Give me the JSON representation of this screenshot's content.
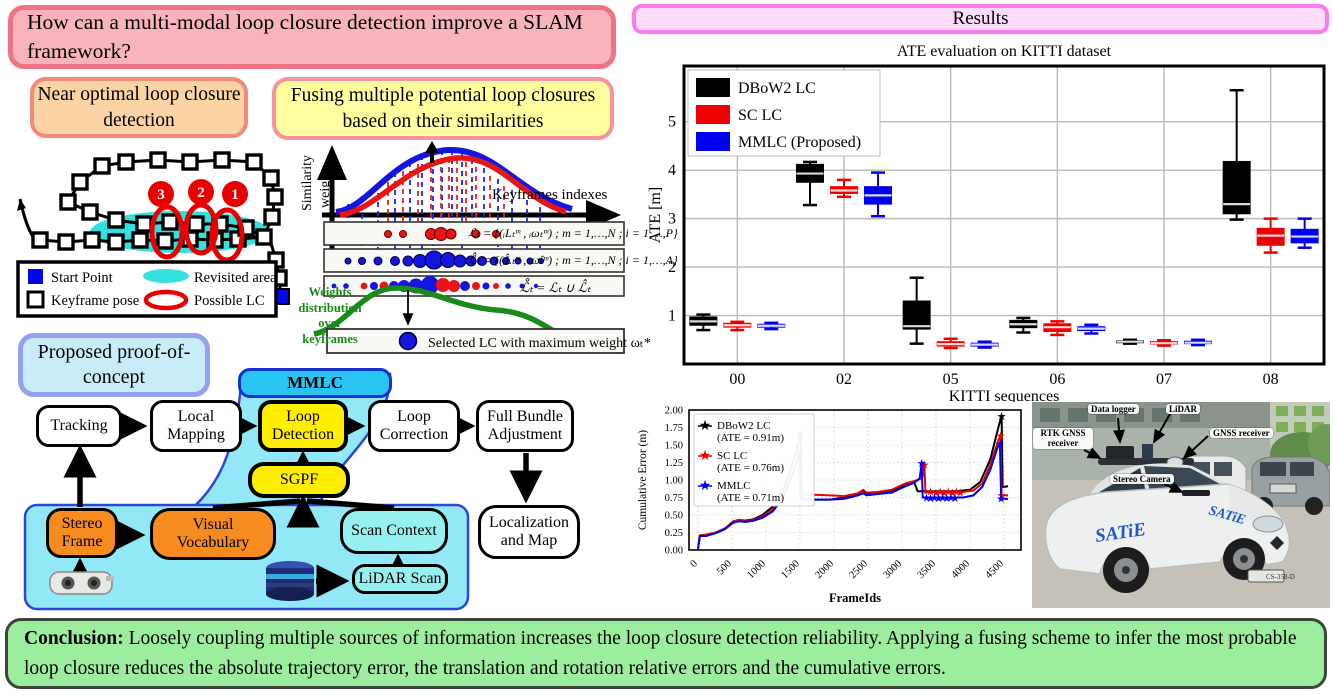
{
  "header": {
    "question": "How can a multi-modal loop closure detection improve a SLAM framework?"
  },
  "method_boxes": {
    "near_optimal": "Near optimal loop closure detection",
    "fusing": "Fusing multiple potential loop closures based on their similarities"
  },
  "trajectory": {
    "legend": {
      "start_point": "Start Point",
      "keyframe_pose": "Keyframe pose",
      "revisited_area": "Revisited area",
      "possible_lc": "Possible LC"
    },
    "lc_labels": {
      "first": "1",
      "second": "2",
      "third": "3"
    }
  },
  "similarity_fig": {
    "ylabel_line1": "Similarity",
    "ylabel_line2": "weight",
    "xlabel": "Keyframes indexes",
    "formula_row1": "ℒₜ = {(ᵢLₜᵐ , ᵢωₜᵐ) ;  m = 1,…,N ;  i = 1,…,P}",
    "formula_row2": "ℒ̂ₜ = {(ᵢL̂ₜᵐ , ᵢω̂ₜᵐ) ;  m = 1,…,N ;  i = 1,…,A}",
    "formula_row3": "ℒ̊ₜ = ℒₜ ∪ ℒ̂ₜ",
    "weights_label": "Weights distribution over keyframes",
    "selected_label": "Selected LC with maximum weight ωₜ*"
  },
  "proposed": {
    "title": "Proposed proof-of-concept",
    "nodes": {
      "tracking": "Tracking",
      "local_mapping": "Local Mapping",
      "mmlc": "MMLC",
      "loop_detection": "Loop Detection",
      "loop_correction": "Loop Correction",
      "full_bundle_adjustment": "Full Bundle Adjustment",
      "sgpf": "SGPF",
      "stereo_frame": "Stereo Frame",
      "visual_vocabulary": "Visual Vocabulary",
      "scan_context": "Scan Context",
      "lidar_scan": "LiDAR Scan",
      "localization_and_map": "Localization and Map"
    }
  },
  "results": {
    "title": "Results"
  },
  "chart_data": [
    {
      "type": "boxplot",
      "title": "ATE evaluation on KITTI dataset",
      "xlabel": "KITTI sequences",
      "ylabel": "ATE [m]",
      "categories": [
        "00",
        "02",
        "05",
        "06",
        "07",
        "08"
      ],
      "ylim": [
        0,
        6.15
      ],
      "yticks": [
        1,
        2,
        3,
        4,
        5
      ],
      "grid": true,
      "legend_position": "upper-left",
      "series": [
        {
          "name": "DBoW2 LC",
          "color": "#000000",
          "boxes": [
            [
              0.7,
              0.8,
              0.88,
              0.97,
              1.02
            ],
            [
              3.28,
              3.75,
              3.93,
              4.12,
              4.17
            ],
            [
              0.42,
              0.72,
              0.78,
              1.3,
              1.78
            ],
            [
              0.65,
              0.75,
              0.82,
              0.9,
              0.95
            ],
            [
              0.42,
              0.44,
              0.46,
              0.48,
              0.5
            ],
            [
              2.98,
              3.1,
              3.3,
              4.18,
              5.65
            ]
          ]
        },
        {
          "name": "SC LC",
          "color": "#ee0000",
          "boxes": [
            [
              0.7,
              0.76,
              0.8,
              0.84,
              0.87
            ],
            [
              3.45,
              3.52,
              3.58,
              3.66,
              3.8
            ],
            [
              0.33,
              0.37,
              0.41,
              0.46,
              0.52
            ],
            [
              0.6,
              0.67,
              0.76,
              0.83,
              0.88
            ],
            [
              0.38,
              0.41,
              0.43,
              0.46,
              0.49
            ],
            [
              2.3,
              2.45,
              2.65,
              2.8,
              3.0
            ]
          ]
        },
        {
          "name": "MMLC (Proposed)",
          "color": "#0000ee",
          "boxes": [
            [
              0.72,
              0.76,
              0.79,
              0.82,
              0.85
            ],
            [
              3.05,
              3.3,
              3.48,
              3.66,
              3.95
            ],
            [
              0.34,
              0.37,
              0.4,
              0.43,
              0.46
            ],
            [
              0.63,
              0.69,
              0.73,
              0.77,
              0.81
            ],
            [
              0.39,
              0.42,
              0.44,
              0.47,
              0.5
            ],
            [
              2.4,
              2.5,
              2.63,
              2.78,
              3.0
            ]
          ]
        }
      ]
    },
    {
      "type": "line",
      "xlabel": "FrameIds",
      "ylabel": "Cumulative Error (m)",
      "xlim": [
        -130,
        4750
      ],
      "ylim": [
        0,
        2.0
      ],
      "xticks": [
        0,
        500,
        1000,
        1500,
        2000,
        2500,
        3000,
        3500,
        4000,
        4500
      ],
      "ytick_labels": [
        "0.00",
        "0.25",
        "0.50",
        "0.75",
        "1.00",
        "1.25",
        "1.50",
        "1.75",
        "2.00"
      ],
      "yticks": [
        0,
        0.25,
        0.5,
        0.75,
        1.0,
        1.25,
        1.5,
        1.75,
        2.0
      ],
      "grid": true,
      "series": [
        {
          "name": "DBoW2 LC",
          "ate_label": "(ATE = 0.91m)",
          "color": "#000000",
          "points": [
            [
              0,
              0
            ],
            [
              30,
              0.2
            ],
            [
              120,
              0.21
            ],
            [
              260,
              0.24
            ],
            [
              400,
              0.3
            ],
            [
              520,
              0.4
            ],
            [
              600,
              0.43
            ],
            [
              700,
              0.42
            ],
            [
              820,
              0.44
            ],
            [
              950,
              0.5
            ],
            [
              1100,
              0.62
            ],
            [
              1250,
              0.85
            ],
            [
              1400,
              1.25
            ],
            [
              1510,
              1.65
            ],
            [
              1525,
              0.73
            ],
            [
              1700,
              0.72
            ],
            [
              1950,
              0.72
            ],
            [
              2150,
              0.75
            ],
            [
              2350,
              0.8
            ],
            [
              2430,
              0.85
            ],
            [
              2480,
              0.8
            ],
            [
              2650,
              0.81
            ],
            [
              2850,
              0.84
            ],
            [
              3050,
              0.93
            ],
            [
              3180,
              0.97
            ],
            [
              3230,
              0.84
            ],
            [
              3500,
              0.84
            ],
            [
              3800,
              0.84
            ],
            [
              4000,
              0.86
            ],
            [
              4150,
              0.97
            ],
            [
              4300,
              1.3
            ],
            [
              4430,
              1.8
            ],
            [
              4465,
              1.91
            ],
            [
              4480,
              0.9
            ],
            [
              4560,
              0.91
            ]
          ],
          "stars": [
            [
              1510,
              1.65
            ],
            [
              4465,
              1.91
            ]
          ]
        },
        {
          "name": "SC LC",
          "ate_label": "(ATE = 0.76m)",
          "color": "#ee0000",
          "points": [
            [
              0,
              0
            ],
            [
              30,
              0.21
            ],
            [
              120,
              0.22
            ],
            [
              260,
              0.25
            ],
            [
              400,
              0.31
            ],
            [
              520,
              0.41
            ],
            [
              600,
              0.43
            ],
            [
              700,
              0.41
            ],
            [
              820,
              0.43
            ],
            [
              950,
              0.48
            ],
            [
              1100,
              0.58
            ],
            [
              1250,
              0.78
            ],
            [
              1400,
              1.12
            ],
            [
              1490,
              1.35
            ],
            [
              1505,
              0.79
            ],
            [
              1700,
              0.79
            ],
            [
              1950,
              0.78
            ],
            [
              2150,
              0.77
            ],
            [
              2350,
              0.81
            ],
            [
              2430,
              0.86
            ],
            [
              2480,
              0.82
            ],
            [
              2650,
              0.83
            ],
            [
              2850,
              0.86
            ],
            [
              3050,
              0.95
            ],
            [
              3200,
              0.99
            ],
            [
              3300,
              1.03
            ],
            [
              3330,
              1.22
            ],
            [
              3345,
              0.82
            ],
            [
              3600,
              0.83
            ],
            [
              3900,
              0.83
            ],
            [
              4050,
              0.85
            ],
            [
              4180,
              0.95
            ],
            [
              4300,
              1.22
            ],
            [
              4420,
              1.58
            ],
            [
              4450,
              1.63
            ],
            [
              4465,
              0.78
            ],
            [
              4560,
              0.78
            ]
          ],
          "stars": [
            [
              1490,
              1.35
            ],
            [
              3330,
              1.22
            ],
            [
              3420,
              0.83
            ],
            [
              3500,
              0.82
            ],
            [
              3560,
              0.83
            ],
            [
              3620,
              0.82
            ],
            [
              3680,
              0.83
            ],
            [
              3740,
              0.82
            ],
            [
              3800,
              0.83
            ],
            [
              3860,
              0.82
            ],
            [
              4450,
              1.63
            ],
            [
              4465,
              0.78
            ]
          ]
        },
        {
          "name": "MMLC",
          "ate_label": "(ATE = 0.71m)",
          "color": "#0000ee",
          "points": [
            [
              0,
              0
            ],
            [
              30,
              0.2
            ],
            [
              120,
              0.2
            ],
            [
              260,
              0.24
            ],
            [
              400,
              0.3
            ],
            [
              520,
              0.39
            ],
            [
              600,
              0.41
            ],
            [
              700,
              0.4
            ],
            [
              820,
              0.42
            ],
            [
              950,
              0.46
            ],
            [
              1100,
              0.55
            ],
            [
              1250,
              0.74
            ],
            [
              1400,
              1.08
            ],
            [
              1500,
              1.4
            ],
            [
              1515,
              0.72
            ],
            [
              1700,
              0.72
            ],
            [
              1950,
              0.72
            ],
            [
              2150,
              0.73
            ],
            [
              2350,
              0.78
            ],
            [
              2430,
              0.81
            ],
            [
              2480,
              0.78
            ],
            [
              2650,
              0.8
            ],
            [
              2850,
              0.82
            ],
            [
              3050,
              0.91
            ],
            [
              3180,
              0.96
            ],
            [
              3260,
              1.02
            ],
            [
              3290,
              1.24
            ],
            [
              3305,
              0.75
            ],
            [
              3600,
              0.75
            ],
            [
              3900,
              0.75
            ],
            [
              4050,
              0.78
            ],
            [
              4180,
              0.9
            ],
            [
              4300,
              1.15
            ],
            [
              4400,
              1.45
            ],
            [
              4440,
              1.52
            ],
            [
              4458,
              0.73
            ],
            [
              4560,
              0.73
            ]
          ],
          "stars": [
            [
              1500,
              1.4
            ],
            [
              3290,
              1.24
            ],
            [
              3360,
              0.75
            ],
            [
              3420,
              0.74
            ],
            [
              3480,
              0.75
            ],
            [
              3540,
              0.74
            ],
            [
              3600,
              0.75
            ],
            [
              3660,
              0.74
            ],
            [
              3720,
              0.75
            ],
            [
              3780,
              0.74
            ],
            [
              4440,
              1.52
            ],
            [
              4458,
              0.73
            ]
          ]
        }
      ]
    }
  ],
  "car_photo": {
    "labels": {
      "data_logger": "Data logger",
      "lidar": "LiDAR",
      "rtk_gnss": "RTK GNSS receiver",
      "gnss": "GNSS receiver",
      "stereo_camera": "Stereo Camera"
    },
    "branding": "SATiE",
    "branding_hood": "SATiE",
    "plate": "CS-358-D"
  },
  "conclusion": {
    "label": "Conclusion:",
    "text": " Loosely coupling multiple sources of information increases the loop closure detection reliability. Applying a fusing scheme to infer the most probable loop closure reduces the absolute trajectory error, the translation and rotation relative errors and the cumulative errors."
  }
}
